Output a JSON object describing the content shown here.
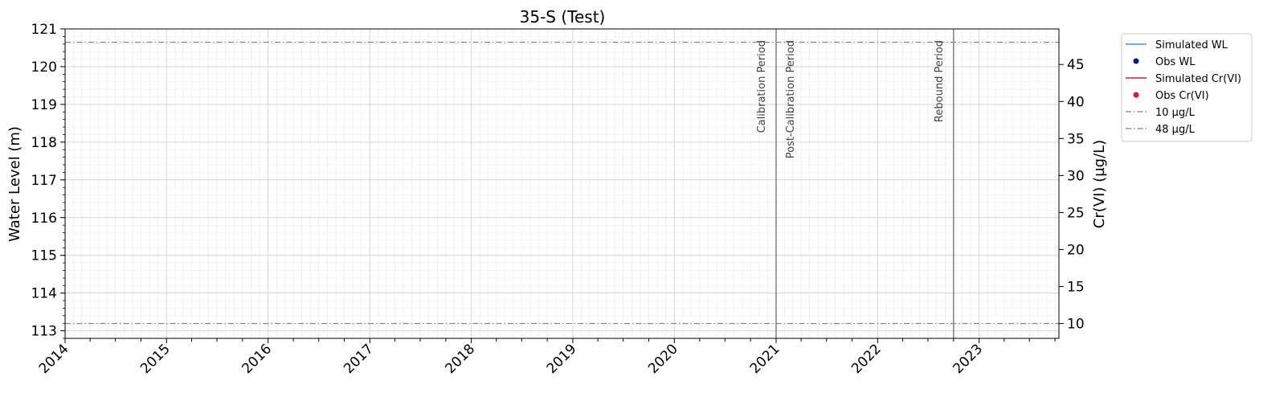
{
  "chart_data": {
    "type": "line",
    "title": "35-S (Test)",
    "xlabel": "",
    "ylabel": "Water Level (m)",
    "y2label": "Cr(VI) (µg/L)",
    "xlim": [
      "2014-01-01",
      "2023-10-15"
    ],
    "ylim": [
      112.8,
      121.0
    ],
    "y2lim": [
      8.0,
      49.8
    ],
    "x_ticks": [
      "2014",
      "2015",
      "2016",
      "2017",
      "2018",
      "2019",
      "2020",
      "2021",
      "2022",
      "2023"
    ],
    "y_ticks": [
      113,
      114,
      115,
      116,
      117,
      118,
      119,
      120,
      121
    ],
    "y2_ticks": [
      10,
      15,
      20,
      25,
      30,
      35,
      40,
      45
    ],
    "grid": true,
    "legend_placement": "outside-top-right",
    "series": [
      {
        "name": "Simulated WL",
        "kind": "line",
        "axis": "left",
        "color": "#4a90e2",
        "x": [],
        "y": []
      },
      {
        "name": "Obs WL",
        "kind": "scatter",
        "axis": "left",
        "color": "#0b1a7a",
        "x": [],
        "y": []
      },
      {
        "name": "Simulated Cr(VI)",
        "kind": "line",
        "axis": "right",
        "color": "#c0282d",
        "x": [],
        "y": []
      },
      {
        "name": "Obs Cr(VI)",
        "kind": "scatter",
        "axis": "right",
        "color": "#dc143c",
        "x": [],
        "y": []
      },
      {
        "name": "10 µg/L",
        "kind": "hline",
        "axis": "right",
        "value": 10,
        "color": "#808080"
      },
      {
        "name": "48 µg/L",
        "kind": "hline",
        "axis": "right",
        "value": 48,
        "color": "#808080"
      }
    ],
    "annotations": [
      {
        "label": "Calibration Period",
        "x": "2021-01-01",
        "side": "left"
      },
      {
        "label": "Post-Calibration Period",
        "x": "2021-01-01",
        "side": "right"
      },
      {
        "label": "Rebound Period",
        "x": "2022-10-01",
        "side": "left"
      }
    ],
    "period_lines": [
      "2021-01-01",
      "2022-10-01"
    ]
  }
}
